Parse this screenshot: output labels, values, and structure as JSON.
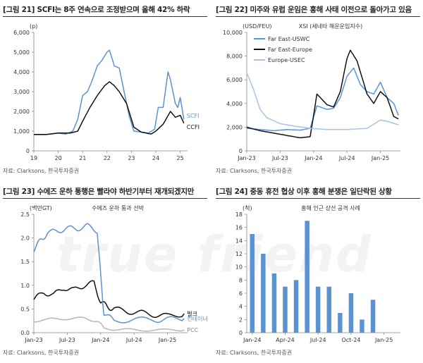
{
  "watermark": "true friend",
  "chart_data": [
    {
      "type": "line",
      "title": "[그림 21] SCFI는 8주 연속으로 조정받으며 올해 42% 하락",
      "source": "자료: Clarksons, 한국투자증권",
      "unit_label": "(p)",
      "x_range": [
        2019,
        2025.3
      ],
      "x_ticks": [
        2019,
        2020,
        2021,
        2022,
        2023,
        2024,
        2025
      ],
      "x_tick_labels": [
        "19",
        "20",
        "21",
        "22",
        "23",
        "24",
        "25"
      ],
      "ylim": [
        0,
        6000
      ],
      "y_ticks": [
        0,
        1000,
        2000,
        3000,
        4000,
        5000,
        6000
      ],
      "y_tick_labels": [
        "0",
        "1,000",
        "2,000",
        "3,000",
        "4,000",
        "5,000",
        "6,000"
      ],
      "series": [
        {
          "name": "SCFI",
          "color": "#5b93d2",
          "x": [
            2019.0,
            2019.5,
            2020.0,
            2020.3,
            2020.6,
            2020.8,
            2021.0,
            2021.2,
            2021.4,
            2021.6,
            2021.8,
            2022.0,
            2022.1,
            2022.3,
            2022.5,
            2022.7,
            2022.9,
            2023.1,
            2023.4,
            2023.7,
            2023.95,
            2024.1,
            2024.3,
            2024.5,
            2024.6,
            2024.8,
            2024.9,
            2025.0,
            2025.15
          ],
          "values": [
            820,
            820,
            900,
            850,
            1000,
            1600,
            2800,
            3000,
            3600,
            4300,
            4600,
            5000,
            5100,
            4300,
            4200,
            3000,
            1800,
            1000,
            950,
            900,
            1100,
            2200,
            2200,
            4000,
            3600,
            2400,
            2200,
            2700,
            1600
          ]
        },
        {
          "name": "CCFI",
          "color": "#111111",
          "x": [
            2019.0,
            2019.5,
            2020.0,
            2020.5,
            2020.8,
            2021.0,
            2021.3,
            2021.6,
            2021.9,
            2022.1,
            2022.3,
            2022.5,
            2022.8,
            2023.1,
            2023.4,
            2023.8,
            2024.0,
            2024.3,
            2024.6,
            2024.8,
            2025.0,
            2025.15
          ],
          "values": [
            830,
            830,
            900,
            900,
            1000,
            1500,
            2200,
            2800,
            3300,
            3500,
            3300,
            3000,
            2400,
            1200,
            950,
            850,
            1000,
            1350,
            2000,
            1700,
            1800,
            1400
          ]
        }
      ]
    },
    {
      "type": "line",
      "title": "[그림 22] 미주와 유럽 운임은 홍해 사태 이전으로 돌아가고 있음",
      "source": "자료: Clarksons, 한국투자증권",
      "unit_label": "(USD/FEU)",
      "subtitle": "XSI (세네타 해운운임지수)",
      "x_range": [
        2023.0,
        2025.3
      ],
      "x_ticks": [
        2023.0,
        2023.5,
        2024.0,
        2024.5,
        2025.0
      ],
      "x_tick_labels": [
        "Jan-23",
        "Jul-23",
        "Jan-24",
        "Jul-24",
        "Jan-25"
      ],
      "ylim": [
        0,
        10000
      ],
      "y_ticks": [
        0,
        2000,
        4000,
        6000,
        8000,
        10000
      ],
      "y_tick_labels": [
        "0",
        "2,000",
        "4,000",
        "6,000",
        "8,000",
        "10,000"
      ],
      "legend": [
        "Far East-USWC",
        "Far East-Europe",
        "Europe-USEC"
      ],
      "series": [
        {
          "name": "Far East-USWC",
          "color": "#5b93d2",
          "x": [
            2023.0,
            2023.2,
            2023.4,
            2023.6,
            2023.8,
            2023.95,
            2024.05,
            2024.2,
            2024.3,
            2024.4,
            2024.5,
            2024.6,
            2024.7,
            2024.8,
            2024.9,
            2025.0,
            2025.1,
            2025.2,
            2025.27
          ],
          "values": [
            1900,
            1800,
            1700,
            1800,
            1750,
            1900,
            3800,
            3500,
            3600,
            4500,
            6300,
            7000,
            5600,
            5000,
            4800,
            5800,
            4500,
            4000,
            3000
          ]
        },
        {
          "name": "Far East-Europe",
          "color": "#111111",
          "x": [
            2023.0,
            2023.2,
            2023.4,
            2023.6,
            2023.8,
            2023.95,
            2024.05,
            2024.2,
            2024.3,
            2024.4,
            2024.5,
            2024.55,
            2024.65,
            2024.8,
            2024.9,
            2025.0,
            2025.1,
            2025.2,
            2025.27
          ],
          "values": [
            2000,
            1700,
            1500,
            1300,
            1100,
            1200,
            4800,
            3900,
            3700,
            5000,
            7800,
            8500,
            7600,
            4800,
            4000,
            5000,
            4500,
            2900,
            2700
          ]
        },
        {
          "name": "Europe-USEC",
          "color": "#a6c4e6",
          "x": [
            2023.0,
            2023.1,
            2023.2,
            2023.3,
            2023.5,
            2023.7,
            2023.95,
            2024.2,
            2024.5,
            2024.8,
            2025.0,
            2025.1,
            2025.27
          ],
          "values": [
            6600,
            5200,
            3500,
            2800,
            2300,
            2100,
            1900,
            1800,
            1800,
            1900,
            2600,
            2500,
            2200
          ]
        }
      ]
    },
    {
      "type": "line",
      "title": "[그림 23] 수에즈 운하 통행은 빨라야 하반기부터 재개되겠지만",
      "source": "자료: Clarksons, 한국투자증권",
      "unit_label": "(백만GT)",
      "subtitle": "수에즈 운하 통과 선박",
      "x_range": [
        2023.0,
        2025.3
      ],
      "x_ticks": [
        2023.0,
        2023.5,
        2024.0,
        2024.5,
        2025.0
      ],
      "x_tick_labels": [
        "Jan-23",
        "Jul-23",
        "Jan-24",
        "Jul-24",
        "Jan-25"
      ],
      "ylim": [
        0,
        2.5
      ],
      "y_ticks": [
        0,
        0.5,
        1.0,
        1.5,
        2.0,
        2.5
      ],
      "y_tick_labels": [
        "0.0",
        "0.5",
        "1.0",
        "1.5",
        "2.0",
        "2.5"
      ],
      "series": [
        {
          "name": "벌크",
          "color": "#111111",
          "x": [
            2023.0,
            2023.15,
            2023.3,
            2023.45,
            2023.6,
            2023.75,
            2023.9,
            2024.0,
            2024.1,
            2024.2,
            2024.4,
            2024.6,
            2024.8,
            2025.0,
            2025.25
          ],
          "values": [
            0.7,
            0.85,
            0.8,
            0.95,
            0.9,
            1.0,
            1.05,
            0.65,
            0.55,
            0.5,
            0.45,
            0.42,
            0.38,
            0.35,
            0.4
          ]
        },
        {
          "name": "컨테이너",
          "color": "#5b93d2",
          "x": [
            2023.0,
            2023.1,
            2023.2,
            2023.35,
            2023.5,
            2023.65,
            2023.8,
            2023.95,
            2024.0,
            2024.05,
            2024.2,
            2024.5,
            2024.8,
            2025.0,
            2025.25
          ],
          "values": [
            1.75,
            1.95,
            2.1,
            2.15,
            2.2,
            2.2,
            2.25,
            2.15,
            1.2,
            0.4,
            0.25,
            0.28,
            0.27,
            0.28,
            0.3
          ]
        },
        {
          "name": "PCC",
          "color": "#b5b5b5",
          "x": [
            2023.0,
            2023.25,
            2023.5,
            2023.75,
            2023.95,
            2024.05,
            2024.3,
            2024.6,
            2024.9,
            2025.25
          ],
          "values": [
            0.25,
            0.28,
            0.3,
            0.3,
            0.25,
            0.1,
            0.06,
            0.06,
            0.05,
            0.06
          ]
        }
      ]
    },
    {
      "type": "bar",
      "title": "[그림 24] 중동 휴전 협상 이후 홍해 분쟁은 일단락된 상황",
      "source": "자료: Clarksons, 한국투자증권",
      "unit_label": "(척)",
      "subtitle": "홍해 인근 상선 공격 사례",
      "ylim": [
        0,
        18
      ],
      "y_ticks": [
        0,
        2,
        4,
        6,
        8,
        10,
        12,
        14,
        16,
        18
      ],
      "y_tick_labels": [
        "0",
        "2",
        "4",
        "6",
        "8",
        "10",
        "12",
        "14",
        "16",
        "18"
      ],
      "categories": [
        "Jan-24",
        "Feb-24",
        "Mar-24",
        "Apr-24",
        "May-24",
        "Jun-24",
        "Jul-24",
        "Aug-24",
        "Sep-24",
        "Oct-24",
        "Nov-24",
        "Dec-24",
        "Jan-25",
        "Feb-25"
      ],
      "x_tick_labels": [
        "Jan-24",
        "Apr-24",
        "Jul-24",
        "Oct-24",
        "Jan-25"
      ],
      "x_tick_indices": [
        0,
        3,
        6,
        9,
        12
      ],
      "values": [
        15,
        12,
        9,
        7,
        8,
        17,
        7,
        7,
        3,
        6,
        2,
        5,
        0,
        0
      ],
      "color": "#5b93d2"
    }
  ]
}
